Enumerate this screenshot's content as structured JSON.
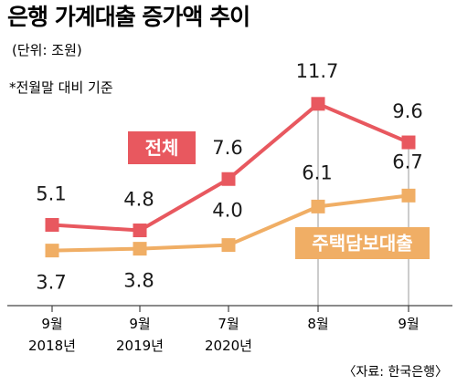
{
  "title": "은행 가계대출 증가액 추이",
  "unit": "(단위: 조원)",
  "note": "*전월말 대비 기준",
  "source": "〈자료: 한국은행〉",
  "chart_data": {
    "type": "line",
    "categories": [
      [
        "9월",
        "2018년"
      ],
      [
        "9월",
        "2019년"
      ],
      [
        "7월",
        "2020년"
      ],
      [
        "8월",
        ""
      ],
      [
        "9월",
        ""
      ]
    ],
    "series": [
      {
        "name": "전체",
        "color": "#e8585f",
        "values": [
          5.1,
          4.8,
          7.6,
          11.7,
          9.6
        ]
      },
      {
        "name": "주택담보대출",
        "color": "#f0ae65",
        "values": [
          3.7,
          3.8,
          4.0,
          6.1,
          6.7
        ]
      }
    ],
    "grid": false,
    "value_labels": true
  }
}
